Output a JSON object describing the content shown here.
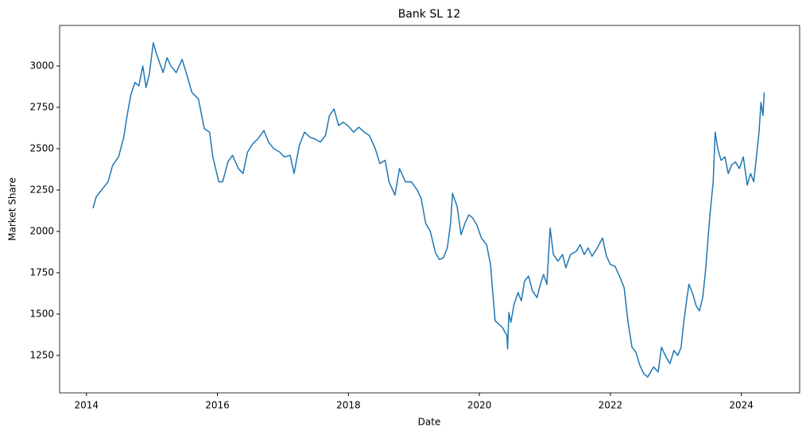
{
  "chart_data": {
    "type": "line",
    "title": "Bank SL 12",
    "xlabel": "Date",
    "ylabel": "Market Share",
    "color": "#1f77b4",
    "x": [
      2014.1,
      2014.15,
      2014.23,
      2014.33,
      2014.4,
      2014.49,
      2014.57,
      2014.62,
      2014.68,
      2014.74,
      2014.8,
      2014.86,
      2014.91,
      2014.96,
      2015.02,
      2015.08,
      2015.17,
      2015.23,
      2015.29,
      2015.37,
      2015.46,
      2015.53,
      2015.61,
      2015.71,
      2015.8,
      2015.88,
      2015.93,
      2016.02,
      2016.08,
      2016.16,
      2016.23,
      2016.32,
      2016.39,
      2016.46,
      2016.54,
      2016.62,
      2016.71,
      2016.78,
      2016.86,
      2016.95,
      2017.02,
      2017.11,
      2017.17,
      2017.25,
      2017.33,
      2017.41,
      2017.48,
      2017.57,
      2017.65,
      2017.71,
      2017.78,
      2017.85,
      2017.92,
      2017.99,
      2018.08,
      2018.16,
      2018.24,
      2018.32,
      2018.41,
      2018.48,
      2018.56,
      2018.62,
      2018.71,
      2018.78,
      2018.87,
      2018.96,
      2019.05,
      2019.11,
      2019.18,
      2019.25,
      2019.33,
      2019.39,
      2019.45,
      2019.51,
      2019.56,
      2019.59,
      2019.66,
      2019.72,
      2019.78,
      2019.84,
      2019.9,
      2019.96,
      2020.03,
      2020.11,
      2020.17,
      2020.2,
      2020.24,
      2020.35,
      2020.42,
      2020.43,
      2020.45,
      2020.48,
      2020.53,
      2020.59,
      2020.64,
      2020.69,
      2020.75,
      2020.81,
      2020.88,
      2020.93,
      2020.98,
      2021.03,
      2021.08,
      2021.13,
      2021.2,
      2021.27,
      2021.32,
      2021.39,
      2021.48,
      2021.54,
      2021.6,
      2021.66,
      2021.72,
      2021.8,
      2021.88,
      2021.94,
      2022.0,
      2022.07,
      2022.15,
      2022.21,
      2022.27,
      2022.33,
      2022.39,
      2022.45,
      2022.51,
      2022.57,
      2022.66,
      2022.73,
      2022.78,
      2022.85,
      2022.91,
      2022.97,
      2023.03,
      2023.08,
      2023.12,
      2023.17,
      2023.2,
      2023.26,
      2023.31,
      2023.36,
      2023.41,
      2023.45,
      2023.48,
      2023.52,
      2023.57,
      2023.6,
      2023.64,
      2023.69,
      2023.75,
      2023.8,
      2023.85,
      2023.91,
      2023.97,
      2024.03,
      2024.09,
      2024.14,
      2024.19,
      2024.23,
      2024.27,
      2024.3,
      2024.33,
      2024.35
    ],
    "values": [
      2140,
      2210,
      2250,
      2300,
      2400,
      2450,
      2570,
      2700,
      2830,
      2900,
      2880,
      3000,
      2870,
      2950,
      3140,
      3060,
      2960,
      3050,
      3000,
      2960,
      3040,
      2950,
      2840,
      2800,
      2620,
      2600,
      2450,
      2300,
      2300,
      2420,
      2460,
      2380,
      2350,
      2480,
      2530,
      2560,
      2610,
      2540,
      2500,
      2480,
      2450,
      2460,
      2350,
      2520,
      2600,
      2570,
      2560,
      2540,
      2580,
      2700,
      2740,
      2640,
      2660,
      2640,
      2600,
      2630,
      2600,
      2580,
      2500,
      2410,
      2430,
      2300,
      2220,
      2380,
      2300,
      2300,
      2250,
      2200,
      2050,
      2000,
      1870,
      1830,
      1840,
      1900,
      2050,
      2230,
      2150,
      1980,
      2050,
      2100,
      2080,
      2040,
      1960,
      1920,
      1800,
      1650,
      1460,
      1420,
      1370,
      1290,
      1510,
      1450,
      1560,
      1630,
      1580,
      1700,
      1730,
      1640,
      1600,
      1680,
      1740,
      1680,
      2020,
      1860,
      1820,
      1860,
      1780,
      1860,
      1880,
      1920,
      1860,
      1900,
      1850,
      1900,
      1960,
      1850,
      1800,
      1790,
      1720,
      1660,
      1450,
      1300,
      1270,
      1190,
      1140,
      1120,
      1180,
      1150,
      1300,
      1240,
      1200,
      1280,
      1250,
      1300,
      1450,
      1600,
      1680,
      1620,
      1550,
      1520,
      1600,
      1750,
      1900,
      2100,
      2300,
      2600,
      2500,
      2430,
      2450,
      2350,
      2400,
      2420,
      2380,
      2450,
      2280,
      2350,
      2300,
      2450,
      2600,
      2780,
      2700,
      2840
    ],
    "xlim": [
      2013.59,
      2024.89
    ],
    "xticks": [
      2014,
      2016,
      2018,
      2020,
      2022,
      2024
    ],
    "ylim": [
      1024,
      3245
    ],
    "yticks": [
      1250,
      1500,
      1750,
      2000,
      2250,
      2500,
      2750,
      3000
    ]
  }
}
